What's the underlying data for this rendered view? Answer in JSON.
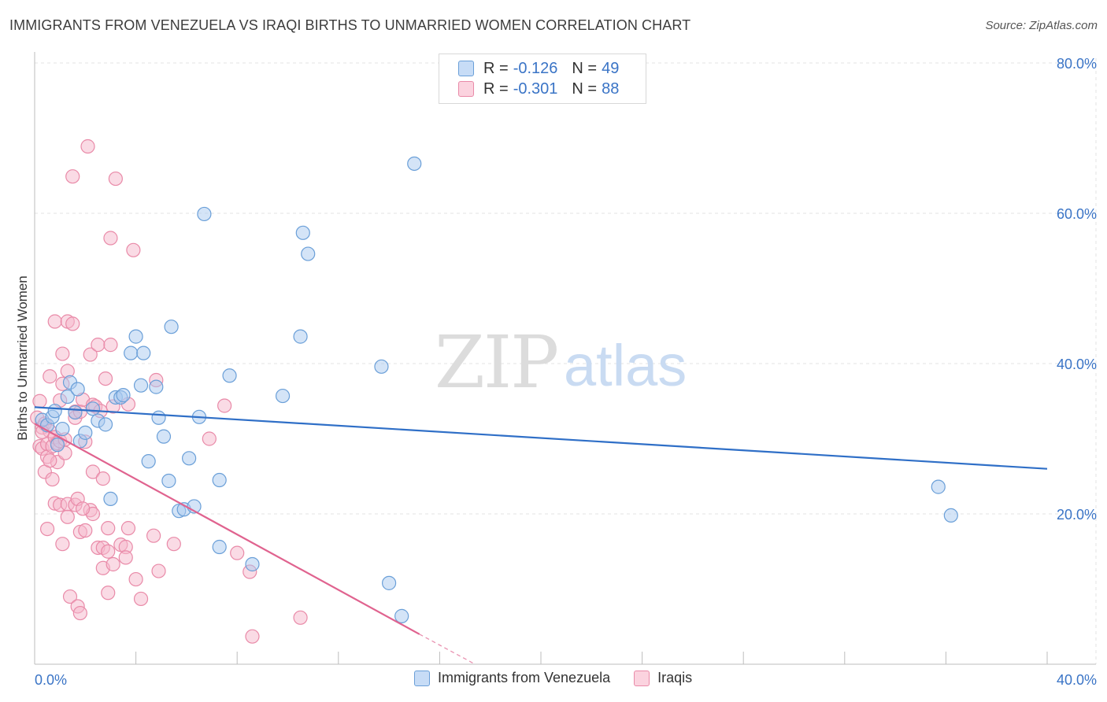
{
  "title": "IMMIGRANTS FROM VENEZUELA VS IRAQI BIRTHS TO UNMARRIED WOMEN CORRELATION CHART",
  "source": "Source: ZipAtlas.com",
  "watermark": {
    "zip": "ZIP",
    "atlas": "atlas"
  },
  "colors": {
    "blue_fill": "#a9c9f0",
    "blue_stroke": "#6a9fd8",
    "blue_line": "#2f6fc7",
    "pink_fill": "#f6b8cb",
    "pink_stroke": "#e98aa8",
    "pink_line": "#e0638f",
    "axis_label": "#3a74c6",
    "grid": "#e3e3e3"
  },
  "legend_top": [
    {
      "r_label": "R =",
      "r_value": "-0.126",
      "n_label": "N =",
      "n_value": "49"
    },
    {
      "r_label": "R =",
      "r_value": "-0.301",
      "n_label": "N =",
      "n_value": "88"
    }
  ],
  "legend_bottom": [
    "Immigrants from Venezuela",
    "Iraqis"
  ],
  "chart_data": {
    "type": "scatter",
    "title": "IMMIGRANTS FROM VENEZUELA VS IRAQI BIRTHS TO UNMARRIED WOMEN CORRELATION CHART",
    "xlabel": "",
    "ylabel": "Births to Unmarried Women",
    "xlim": [
      0,
      40
    ],
    "ylim": [
      0,
      80
    ],
    "x_tick_labels": [
      "0.0%",
      "40.0%"
    ],
    "y_ticks": [
      20,
      40,
      60,
      80
    ],
    "y_tick_labels": [
      "20.0%",
      "40.0%",
      "60.0%",
      "80.0%"
    ],
    "grid": true,
    "legend_position": "top-center",
    "series": [
      {
        "name": "Immigrants from Venezuela",
        "r": -0.126,
        "n": 49,
        "trend": {
          "x": [
            0,
            40
          ],
          "y": [
            34.2,
            26.0
          ],
          "style": "solid"
        },
        "points": [
          [
            0.3,
            32.5
          ],
          [
            0.5,
            31.8
          ],
          [
            0.7,
            32.9
          ],
          [
            0.8,
            33.7
          ],
          [
            0.9,
            29.2
          ],
          [
            1.1,
            31.3
          ],
          [
            1.3,
            35.6
          ],
          [
            1.4,
            37.5
          ],
          [
            1.6,
            33.5
          ],
          [
            1.7,
            36.6
          ],
          [
            1.8,
            29.7
          ],
          [
            2.0,
            30.8
          ],
          [
            2.3,
            34.0
          ],
          [
            2.5,
            32.4
          ],
          [
            2.8,
            31.9
          ],
          [
            3.0,
            22.0
          ],
          [
            3.2,
            35.5
          ],
          [
            3.4,
            35.5
          ],
          [
            3.5,
            35.8
          ],
          [
            3.8,
            41.4
          ],
          [
            4.0,
            43.6
          ],
          [
            4.2,
            37.1
          ],
          [
            4.3,
            41.4
          ],
          [
            4.5,
            27.0
          ],
          [
            4.8,
            36.9
          ],
          [
            4.9,
            32.8
          ],
          [
            5.1,
            30.3
          ],
          [
            5.3,
            24.4
          ],
          [
            5.4,
            44.9
          ],
          [
            5.7,
            20.4
          ],
          [
            5.9,
            20.6
          ],
          [
            6.1,
            27.4
          ],
          [
            6.3,
            21.0
          ],
          [
            6.5,
            32.9
          ],
          [
            6.7,
            59.9
          ],
          [
            7.3,
            15.6
          ],
          [
            7.3,
            24.5
          ],
          [
            7.7,
            38.4
          ],
          [
            8.6,
            13.3
          ],
          [
            9.8,
            35.7
          ],
          [
            10.5,
            43.6
          ],
          [
            10.6,
            57.4
          ],
          [
            10.8,
            54.6
          ],
          [
            13.7,
            39.6
          ],
          [
            14.0,
            10.8
          ],
          [
            14.5,
            6.4
          ],
          [
            15.0,
            66.6
          ],
          [
            35.7,
            23.6
          ],
          [
            36.2,
            19.8
          ]
        ]
      },
      {
        "name": "Iraqis",
        "r": -0.301,
        "n": 88,
        "trend": {
          "x": [
            0,
            15.2
          ],
          "y": [
            32.0,
            4.0
          ],
          "style": "solid",
          "dashed_extension": {
            "x": [
              15.2,
              17.4
            ],
            "y": [
              4.0,
              0.0
            ]
          }
        },
        "points": [
          [
            0.1,
            32.8
          ],
          [
            0.2,
            35.0
          ],
          [
            0.2,
            29.0
          ],
          [
            0.3,
            31.5
          ],
          [
            0.3,
            28.7
          ],
          [
            0.4,
            32.0
          ],
          [
            0.4,
            25.6
          ],
          [
            0.5,
            29.3
          ],
          [
            0.5,
            27.6
          ],
          [
            0.5,
            18.0
          ],
          [
            0.6,
            38.3
          ],
          [
            0.6,
            31.0
          ],
          [
            0.7,
            29.0
          ],
          [
            0.7,
            24.6
          ],
          [
            0.8,
            30.2
          ],
          [
            0.8,
            21.4
          ],
          [
            0.8,
            45.6
          ],
          [
            0.9,
            29.4
          ],
          [
            0.9,
            26.9
          ],
          [
            1.0,
            35.1
          ],
          [
            1.0,
            29.7
          ],
          [
            1.0,
            21.2
          ],
          [
            1.1,
            41.3
          ],
          [
            1.1,
            37.3
          ],
          [
            1.1,
            16.0
          ],
          [
            1.2,
            28.1
          ],
          [
            1.3,
            45.6
          ],
          [
            1.3,
            39.0
          ],
          [
            1.3,
            21.3
          ],
          [
            1.3,
            19.6
          ],
          [
            1.4,
            9.0
          ],
          [
            1.5,
            64.9
          ],
          [
            1.5,
            45.3
          ],
          [
            1.6,
            33.6
          ],
          [
            1.6,
            32.8
          ],
          [
            1.6,
            21.2
          ],
          [
            1.7,
            22.0
          ],
          [
            1.7,
            7.7
          ],
          [
            1.8,
            33.6
          ],
          [
            1.8,
            17.6
          ],
          [
            1.8,
            6.8
          ],
          [
            1.9,
            35.2
          ],
          [
            2.0,
            29.6
          ],
          [
            2.0,
            17.8
          ],
          [
            2.1,
            68.9
          ],
          [
            2.2,
            41.2
          ],
          [
            2.2,
            20.5
          ],
          [
            2.3,
            34.5
          ],
          [
            2.3,
            25.6
          ],
          [
            2.3,
            20.0
          ],
          [
            2.4,
            34.3
          ],
          [
            2.5,
            42.5
          ],
          [
            2.5,
            15.5
          ],
          [
            2.6,
            33.7
          ],
          [
            2.7,
            24.7
          ],
          [
            2.7,
            12.8
          ],
          [
            2.7,
            15.5
          ],
          [
            2.8,
            38.0
          ],
          [
            2.9,
            18.1
          ],
          [
            2.9,
            15.0
          ],
          [
            2.9,
            9.5
          ],
          [
            3.0,
            42.5
          ],
          [
            3.0,
            56.7
          ],
          [
            3.1,
            34.3
          ],
          [
            3.1,
            13.3
          ],
          [
            3.2,
            64.6
          ],
          [
            3.4,
            15.9
          ],
          [
            3.6,
            15.6
          ],
          [
            3.6,
            14.2
          ],
          [
            3.7,
            18.1
          ],
          [
            3.7,
            34.6
          ],
          [
            3.9,
            55.1
          ],
          [
            4.0,
            11.3
          ],
          [
            4.2,
            8.7
          ],
          [
            4.7,
            17.1
          ],
          [
            4.8,
            37.8
          ],
          [
            4.9,
            12.4
          ],
          [
            5.5,
            16.0
          ],
          [
            6.9,
            30.0
          ],
          [
            7.5,
            34.4
          ],
          [
            8.0,
            14.8
          ],
          [
            8.5,
            12.3
          ],
          [
            8.6,
            3.7
          ],
          [
            10.5,
            6.2
          ],
          [
            0.3,
            30.9
          ],
          [
            0.6,
            27.1
          ],
          [
            1.2,
            29.9
          ],
          [
            1.9,
            20.7
          ]
        ]
      }
    ]
  }
}
